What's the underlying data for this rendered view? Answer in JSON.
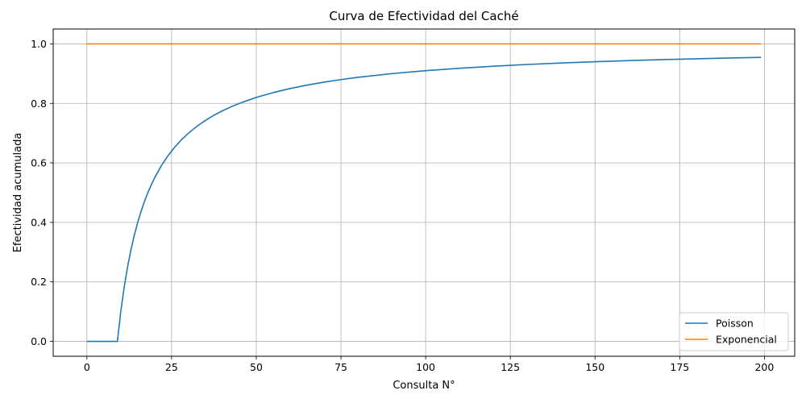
{
  "chart_data": {
    "type": "line",
    "title": "Curva de Efectividad del Caché",
    "xlabel": "Consulta N°",
    "ylabel": "Efectividad acumulada",
    "xlim": [
      -9.95,
      208.95
    ],
    "ylim": [
      -0.05,
      1.05
    ],
    "xticks": [
      0,
      25,
      50,
      75,
      100,
      125,
      150,
      175,
      200
    ],
    "xtick_labels": [
      "0",
      "25",
      "50",
      "75",
      "100",
      "125",
      "150",
      "175",
      "200"
    ],
    "yticks": [
      0.0,
      0.2,
      0.4,
      0.6,
      0.8,
      1.0
    ],
    "ytick_labels": [
      "0.0",
      "0.2",
      "0.4",
      "0.6",
      "0.8",
      "1.0"
    ],
    "grid": true,
    "legend_position": "lower-right",
    "x": [
      0,
      1,
      2,
      3,
      4,
      5,
      6,
      7,
      8,
      9,
      10,
      11,
      12,
      13,
      14,
      15,
      16,
      17,
      18,
      19,
      20,
      22,
      24,
      26,
      28,
      30,
      32,
      34,
      36,
      38,
      40,
      43,
      46,
      50,
      55,
      60,
      65,
      70,
      75,
      80,
      90,
      100,
      110,
      120,
      130,
      140,
      150,
      160,
      170,
      180,
      190,
      199
    ],
    "series": [
      {
        "name": "Poisson",
        "color": "#1f77b4",
        "values": [
          0,
          0,
          0,
          0,
          0,
          0,
          0,
          0,
          0,
          0,
          0.1,
          0.1818,
          0.25,
          0.3077,
          0.3571,
          0.4,
          0.4375,
          0.4706,
          0.5,
          0.5263,
          0.55,
          0.5909,
          0.625,
          0.6538,
          0.6786,
          0.7,
          0.7188,
          0.7353,
          0.75,
          0.7632,
          0.775,
          0.7907,
          0.8043,
          0.82,
          0.8364,
          0.85,
          0.8615,
          0.8714,
          0.88,
          0.8875,
          0.9,
          0.91,
          0.9182,
          0.925,
          0.9308,
          0.9357,
          0.94,
          0.9438,
          0.9471,
          0.95,
          0.9526,
          0.9548
        ]
      },
      {
        "name": "Exponencial",
        "color": "#ff7f0e",
        "values": [
          1,
          1,
          1,
          1,
          1,
          1,
          1,
          1,
          1,
          1,
          1,
          1,
          1,
          1,
          1,
          1,
          1,
          1,
          1,
          1,
          1,
          1,
          1,
          1,
          1,
          1,
          1,
          1,
          1,
          1,
          1,
          1,
          1,
          1,
          1,
          1,
          1,
          1,
          1,
          1,
          1,
          1,
          1,
          1,
          1,
          1,
          1,
          1,
          1,
          1,
          1,
          1
        ]
      }
    ]
  }
}
